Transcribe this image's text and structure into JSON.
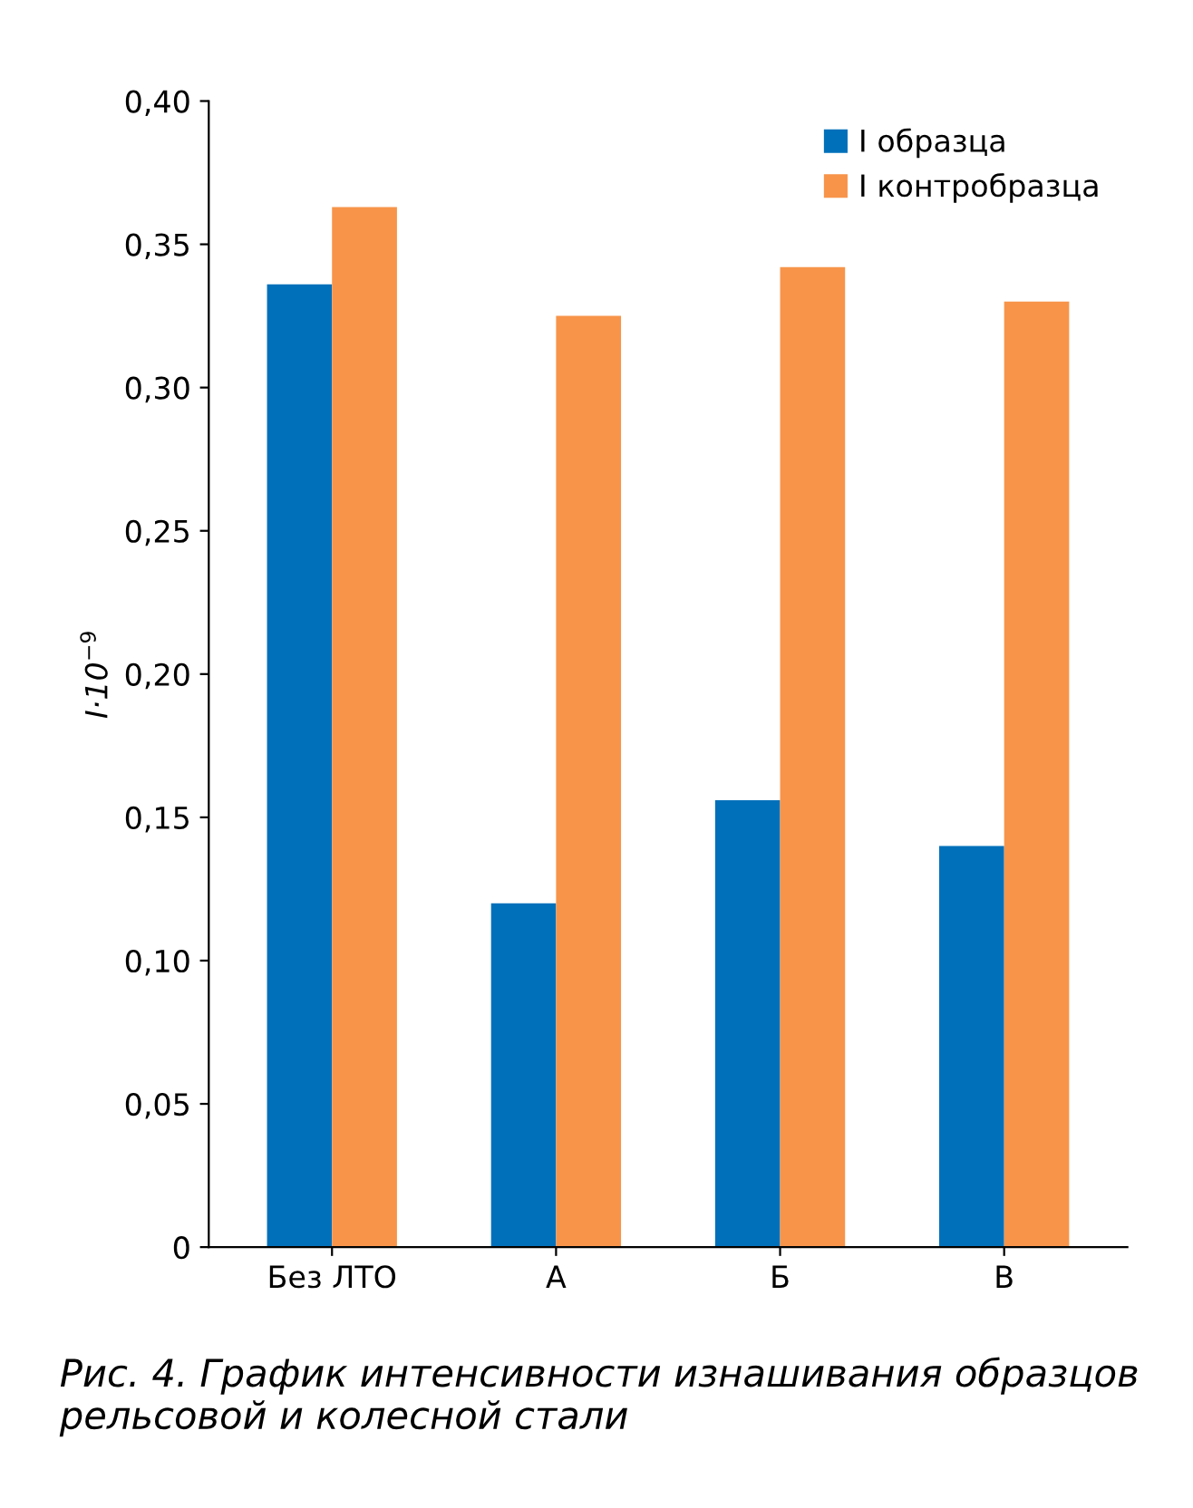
{
  "chart_data": {
    "type": "bar",
    "categories": [
      "Без ЛТО",
      "А",
      "Б",
      "В"
    ],
    "series": [
      {
        "name": "I образца",
        "color": "#0070ba",
        "values": [
          0.336,
          0.12,
          0.156,
          0.14
        ]
      },
      {
        "name": "I контробразца",
        "color": "#f7944a",
        "values": [
          0.363,
          0.325,
          0.342,
          0.33
        ]
      }
    ],
    "ylabel": "I·10$^{−9}$",
    "ylim": [
      0,
      0.4
    ],
    "yticks": [
      0,
      {
        "value": 0.05,
        "label": "0,05"
      },
      {
        "value": 0.1,
        "label": "0,10"
      },
      {
        "value": 0.15,
        "label": "0,15"
      },
      {
        "value": 0.2,
        "label": "0,20"
      },
      {
        "value": 0.25,
        "label": "0,25"
      },
      {
        "value": 0.3,
        "label": "0,30"
      },
      {
        "value": 0.35,
        "label": "0,35"
      },
      {
        "value": 0.4,
        "label": "0,40"
      }
    ],
    "grid": false,
    "legend": "top right",
    "annotations": [
      "Рис. 4. График интенсивности изнашивания образцов рельсовой и колесной стали"
    ]
  }
}
